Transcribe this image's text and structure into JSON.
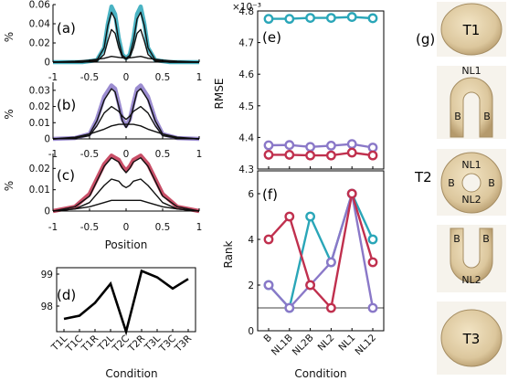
{
  "chart_data": [
    {
      "type": "line",
      "panel_label": "(a)",
      "ylabel": "%",
      "xlim": [
        -1,
        1
      ],
      "ylim": [
        0,
        0.06
      ],
      "yticks": [
        "0",
        "0.02",
        "0.04",
        "0.06"
      ],
      "xticks": [
        "-1",
        "-0.5",
        "0",
        "0.5",
        "1"
      ],
      "color": "#2aa6b8",
      "series": [
        {
          "role": "envelope",
          "x": [
            -1,
            -0.6,
            -0.4,
            -0.3,
            -0.25,
            -0.2,
            -0.15,
            -0.1,
            -0.05,
            0,
            0.05,
            0.1,
            0.15,
            0.2,
            0.25,
            0.3,
            0.4,
            0.6,
            1
          ],
          "y": [
            0,
            0,
            0.002,
            0.015,
            0.04,
            0.058,
            0.05,
            0.025,
            0.008,
            0.004,
            0.008,
            0.025,
            0.05,
            0.058,
            0.04,
            0.015,
            0.002,
            0,
            0
          ]
        },
        {
          "role": "curve1",
          "x": [
            -1,
            -0.6,
            -0.4,
            -0.3,
            -0.25,
            -0.2,
            -0.15,
            -0.1,
            -0.05,
            0,
            0.05,
            0.1,
            0.15,
            0.2,
            0.25,
            0.3,
            0.4,
            0.6,
            1
          ],
          "y": [
            0,
            0,
            0.002,
            0.015,
            0.038,
            0.052,
            0.045,
            0.022,
            0.007,
            0.004,
            0.007,
            0.022,
            0.045,
            0.052,
            0.038,
            0.015,
            0.002,
            0,
            0
          ]
        },
        {
          "role": "curve2",
          "x": [
            -1,
            -0.6,
            -0.4,
            -0.3,
            -0.25,
            -0.2,
            -0.15,
            -0.1,
            -0.05,
            0,
            0.05,
            0.1,
            0.15,
            0.2,
            0.25,
            0.3,
            0.4,
            0.6,
            1
          ],
          "y": [
            0,
            0,
            0.001,
            0.008,
            0.022,
            0.034,
            0.03,
            0.015,
            0.005,
            0.003,
            0.005,
            0.015,
            0.03,
            0.034,
            0.022,
            0.008,
            0.001,
            0,
            0
          ]
        },
        {
          "role": "curve3",
          "x": [
            -1,
            -0.7,
            -0.5,
            -0.3,
            -0.2,
            -0.1,
            0,
            0.1,
            0.2,
            0.3,
            0.5,
            0.7,
            1
          ],
          "y": [
            0,
            0.001,
            0.002,
            0.004,
            0.006,
            0.005,
            0.004,
            0.005,
            0.006,
            0.004,
            0.002,
            0.001,
            0
          ]
        }
      ]
    },
    {
      "type": "line",
      "panel_label": "(b)",
      "ylabel": "%",
      "xlim": [
        -1,
        1
      ],
      "ylim": [
        0,
        0.035
      ],
      "yticks": [
        "0",
        "0.01",
        "0.02",
        "0.03"
      ],
      "xticks": [
        "-1",
        "-0.5",
        "0",
        "0.5",
        "1"
      ],
      "color": "#8a78c8",
      "series": [
        {
          "role": "envelope",
          "x": [
            -1,
            -0.7,
            -0.5,
            -0.4,
            -0.3,
            -0.2,
            -0.15,
            -0.1,
            -0.05,
            0,
            0.05,
            0.1,
            0.15,
            0.2,
            0.3,
            0.4,
            0.5,
            0.7,
            1
          ],
          "y": [
            0,
            0.0005,
            0.003,
            0.012,
            0.026,
            0.033,
            0.031,
            0.022,
            0.012,
            0.008,
            0.012,
            0.022,
            0.031,
            0.033,
            0.026,
            0.012,
            0.003,
            0.0005,
            0
          ]
        },
        {
          "role": "curve1",
          "x": [
            -1,
            -0.7,
            -0.5,
            -0.4,
            -0.3,
            -0.2,
            -0.15,
            -0.1,
            -0.05,
            0,
            0.05,
            0.1,
            0.15,
            0.2,
            0.3,
            0.4,
            0.5,
            0.7,
            1
          ],
          "y": [
            0,
            0.0005,
            0.003,
            0.011,
            0.024,
            0.031,
            0.029,
            0.02,
            0.011,
            0.007,
            0.011,
            0.02,
            0.029,
            0.031,
            0.024,
            0.011,
            0.003,
            0.0005,
            0
          ]
        },
        {
          "role": "curve2",
          "x": [
            -1,
            -0.7,
            -0.5,
            -0.4,
            -0.3,
            -0.2,
            -0.1,
            -0.05,
            0,
            0.05,
            0.1,
            0.2,
            0.3,
            0.4,
            0.5,
            0.7,
            1
          ],
          "y": [
            0,
            0.0005,
            0.002,
            0.008,
            0.016,
            0.02,
            0.017,
            0.014,
            0.012,
            0.014,
            0.017,
            0.02,
            0.016,
            0.008,
            0.002,
            0.0005,
            0
          ]
        },
        {
          "role": "curve3",
          "x": [
            -1,
            -0.7,
            -0.5,
            -0.3,
            -0.2,
            -0.1,
            0,
            0.1,
            0.2,
            0.3,
            0.5,
            0.7,
            1
          ],
          "y": [
            0,
            0.001,
            0.003,
            0.006,
            0.008,
            0.009,
            0.009,
            0.009,
            0.008,
            0.006,
            0.003,
            0.001,
            0
          ]
        }
      ]
    },
    {
      "type": "line",
      "panel_label": "(c)",
      "ylabel": "%",
      "xlabel": "Position",
      "xlim": [
        -1,
        1
      ],
      "ylim": [
        0,
        0.027
      ],
      "yticks": [
        "0",
        "0.01",
        "0.02"
      ],
      "xticks": [
        "-1",
        "-0.5",
        "0",
        "0.5",
        "1"
      ],
      "color": "#c0304e",
      "series": [
        {
          "role": "envelope",
          "x": [
            -1,
            -0.7,
            -0.5,
            -0.4,
            -0.3,
            -0.2,
            -0.1,
            -0.05,
            0,
            0.05,
            0.1,
            0.2,
            0.3,
            0.4,
            0.5,
            0.7,
            1
          ],
          "y": [
            0,
            0.002,
            0.008,
            0.015,
            0.022,
            0.026,
            0.024,
            0.021,
            0.019,
            0.021,
            0.024,
            0.026,
            0.022,
            0.015,
            0.008,
            0.002,
            0
          ]
        },
        {
          "role": "curve1",
          "x": [
            -1,
            -0.7,
            -0.5,
            -0.4,
            -0.3,
            -0.2,
            -0.1,
            -0.05,
            0,
            0.05,
            0.1,
            0.2,
            0.3,
            0.4,
            0.5,
            0.7,
            1
          ],
          "y": [
            0,
            0.002,
            0.007,
            0.014,
            0.021,
            0.025,
            0.023,
            0.02,
            0.018,
            0.02,
            0.023,
            0.025,
            0.021,
            0.014,
            0.007,
            0.002,
            0
          ]
        },
        {
          "role": "curve2",
          "x": [
            -1,
            -0.7,
            -0.5,
            -0.4,
            -0.3,
            -0.2,
            -0.1,
            -0.05,
            0,
            0.05,
            0.1,
            0.2,
            0.3,
            0.4,
            0.5,
            0.7,
            1
          ],
          "y": [
            0,
            0.001,
            0.004,
            0.008,
            0.012,
            0.015,
            0.014,
            0.012,
            0.011,
            0.012,
            0.014,
            0.015,
            0.012,
            0.008,
            0.004,
            0.001,
            0
          ]
        },
        {
          "role": "curve3",
          "x": [
            -1,
            -0.7,
            -0.5,
            -0.3,
            -0.2,
            -0.1,
            0,
            0.1,
            0.2,
            0.3,
            0.5,
            0.7,
            1
          ],
          "y": [
            0,
            0.001,
            0.002,
            0.004,
            0.005,
            0.005,
            0.005,
            0.005,
            0.005,
            0.004,
            0.002,
            0.001,
            0
          ]
        }
      ]
    },
    {
      "type": "line",
      "panel_label": "(d)",
      "xlabel": "Condition",
      "categories": [
        "T1L",
        "T1C",
        "T1R",
        "T2L",
        "T2C",
        "T2R",
        "T3L",
        "T3C",
        "T3R"
      ],
      "ylim": [
        97.2,
        99.2
      ],
      "yticks": [
        "98",
        "99"
      ],
      "values": [
        97.6,
        97.7,
        98.1,
        98.7,
        97.2,
        99.1,
        98.9,
        98.55,
        98.85
      ],
      "color": "#000000"
    },
    {
      "type": "line",
      "panel_label": "(e)",
      "ylabel": "RMSE",
      "exponent_label": "×10⁻³",
      "categories": [
        "B",
        "NL1B",
        "NL2B",
        "NL2",
        "NL1",
        "NL12"
      ],
      "ylim": [
        4.3,
        4.8
      ],
      "yticks": [
        "4.3",
        "4.4",
        "4.5",
        "4.6",
        "4.7",
        "4.8"
      ],
      "series": [
        {
          "color": "#2aa6b8",
          "values": [
            4.775,
            4.775,
            4.778,
            4.778,
            4.781,
            4.777
          ]
        },
        {
          "color": "#8a78c8",
          "values": [
            4.375,
            4.376,
            4.37,
            4.374,
            4.379,
            4.368
          ]
        },
        {
          "color": "#c0304e",
          "values": [
            4.345,
            4.345,
            4.343,
            4.343,
            4.352,
            4.343
          ]
        }
      ]
    },
    {
      "type": "line",
      "panel_label": "(f)",
      "ylabel": "Rank",
      "xlabel": "Condition",
      "categories": [
        "B",
        "NL1B",
        "NL2B",
        "NL2",
        "NL1",
        "NL12"
      ],
      "ylim": [
        0,
        7
      ],
      "yticks": [
        "0",
        "2",
        "4",
        "6"
      ],
      "reference_line": 1,
      "series": [
        {
          "color": "#2aa6b8",
          "values": [
            2,
            1,
            5,
            3,
            6,
            4
          ]
        },
        {
          "color": "#8a78c8",
          "values": [
            2,
            1,
            2,
            3,
            6,
            1
          ]
        },
        {
          "color": "#c0304e",
          "values": [
            4,
            5,
            2,
            1,
            6,
            3
          ]
        }
      ]
    }
  ],
  "photos": {
    "panel_label": "(g)",
    "side_label": "T2",
    "items": [
      {
        "label": "T1",
        "shape": "disc"
      },
      {
        "label": "NL1",
        "shape": "arch",
        "sub": [
          "B",
          "B"
        ]
      },
      {
        "label": "NL1",
        "shape": "ring",
        "sub": [
          "B",
          "B"
        ],
        "inner": "NL2"
      },
      {
        "label": "NL2",
        "shape": "u",
        "sub": [
          "B",
          "B"
        ]
      },
      {
        "label": "T3",
        "shape": "disc"
      }
    ]
  }
}
